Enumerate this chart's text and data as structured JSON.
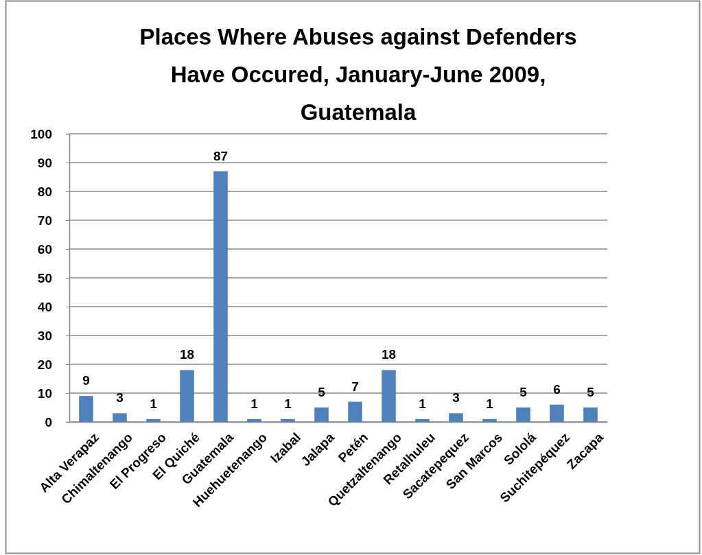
{
  "chart_data": {
    "type": "bar",
    "title": "Places Where Abuses against Defenders Have Occured, January-June 2009, Guatemala",
    "categories": [
      "Alta Verapaz",
      "Chimaltenango",
      "El Progreso",
      "El Quiché",
      "Guatemala",
      "Huehuetenango",
      "Izabal",
      "Jalapa",
      "Petén",
      "Quetzaltenango",
      "Retalhuleu",
      "Sacatepequez",
      "San Marcos",
      "Sololá",
      "Suchitepéquez",
      "Zacapa"
    ],
    "values": [
      9,
      3,
      1,
      18,
      87,
      1,
      1,
      5,
      7,
      18,
      1,
      3,
      1,
      5,
      6,
      5
    ],
    "color": "#4f81bd",
    "ylim": [
      0,
      100
    ],
    "yticks": [
      0,
      10,
      20,
      30,
      40,
      50,
      60,
      70,
      80,
      90,
      100
    ],
    "grid": "y",
    "data_labels": true
  }
}
